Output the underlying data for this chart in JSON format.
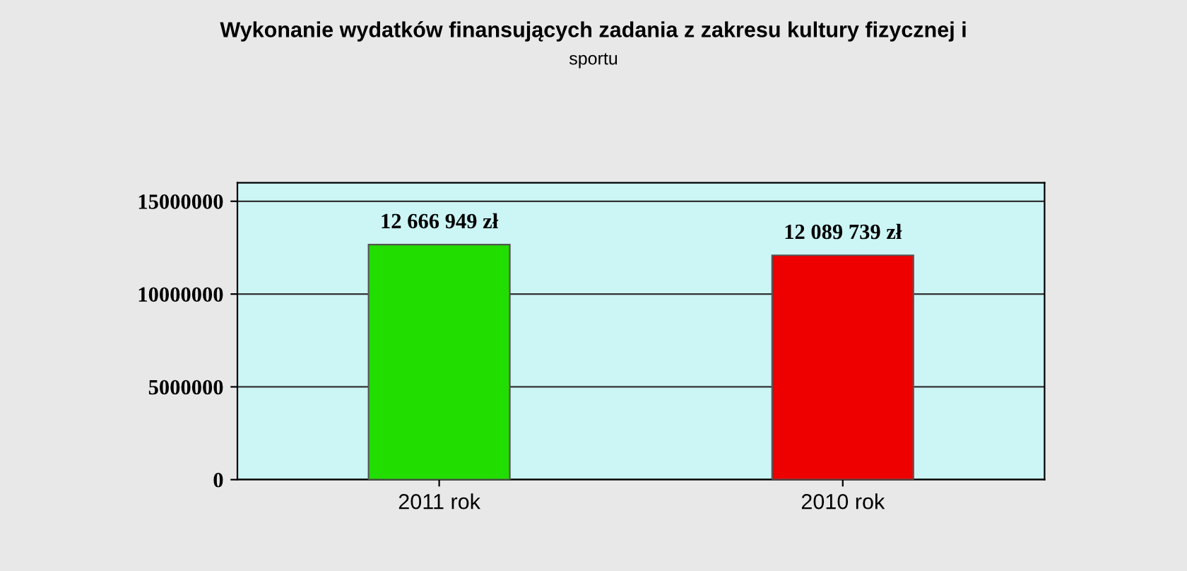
{
  "chart_data": {
    "type": "bar",
    "title": "Wykonanie wydatków finansujących zadania z zakresu kultury fizycznej i",
    "subtitle": "sportu",
    "categories": [
      "2011 rok",
      "2010 rok"
    ],
    "values": [
      12666949,
      12089739
    ],
    "colors": [
      "#22dd00",
      "#ee0000"
    ],
    "value_labels": [
      "12 666 949 zł",
      "12 089 739 zł"
    ],
    "ylim": [
      0,
      16000000
    ],
    "yticks": [
      0,
      5000000,
      10000000,
      15000000
    ],
    "grid": "y",
    "legend": false
  }
}
